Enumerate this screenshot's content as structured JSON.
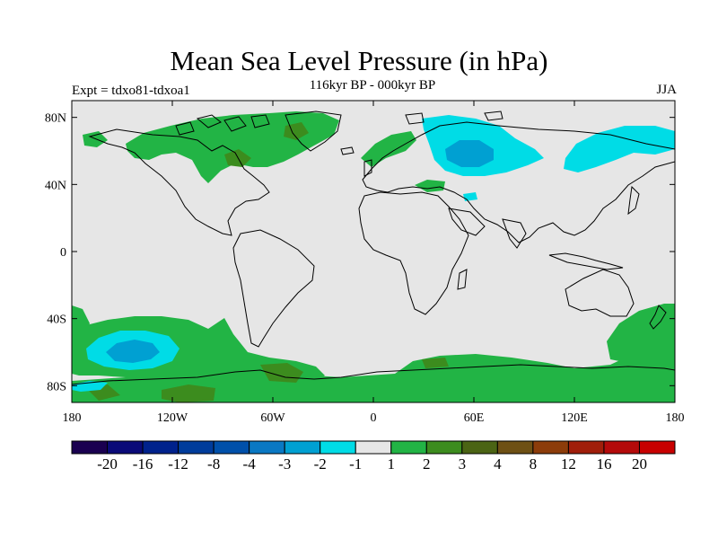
{
  "header": {
    "title": "Mean Sea Level Pressure (in hPa)",
    "subtitle": "116kyr BP - 000kyr BP",
    "left_label": "Expt = tdxo81-tdxoa1",
    "right_label": "JJA"
  },
  "map": {
    "projection": "cylindrical equidistant",
    "background_color": "#e6e6e6",
    "coastline_color": "#000000",
    "lat_ticks": [
      "80N",
      "40N",
      "0",
      "40S",
      "80S"
    ],
    "lon_ticks": [
      "180",
      "120W",
      "60W",
      "0",
      "60E",
      "120E",
      "180"
    ],
    "lat_values": [
      80,
      40,
      0,
      -40,
      -80
    ],
    "lon_values": [
      -180,
      -120,
      -60,
      0,
      60,
      120,
      180
    ],
    "lat_range": [
      -90,
      90
    ],
    "lon_range": [
      -180,
      180
    ]
  },
  "colorbar": {
    "labels": [
      "-20",
      "-16",
      "-12",
      "-8",
      "-4",
      "-3",
      "-2",
      "-1",
      "1",
      "2",
      "3",
      "4",
      "8",
      "12",
      "16",
      "20"
    ],
    "colors": [
      "#1a0050",
      "#0a0a78",
      "#00228c",
      "#003c9b",
      "#0050aa",
      "#0a78c3",
      "#00a0d2",
      "#00dce6",
      "#e6e6e6",
      "#22b445",
      "#3c8c1e",
      "#4b6414",
      "#6e5014",
      "#8c3c0a",
      "#a01e0a",
      "#b40a0a",
      "#c80000"
    ]
  },
  "fields": {
    "positive_anomaly_regions": [
      {
        "region": "Arctic Canada / Greenland",
        "level": "2"
      },
      {
        "region": "South Pacific 40S-60S",
        "level": "2"
      },
      {
        "region": "Southern Ocean near Antarctica",
        "level": "2-3"
      },
      {
        "region": "Southwest Pacific / New Zealand",
        "level": "2"
      }
    ],
    "negative_anomaly_regions": [
      {
        "region": "Northern Eurasia (Barents / Kara Sea)",
        "level": "-1 to -2"
      },
      {
        "region": "Northeast Siberia",
        "level": "-1"
      },
      {
        "region": "South Pacific ~55S 135W",
        "level": "-1 to -2"
      }
    ]
  }
}
